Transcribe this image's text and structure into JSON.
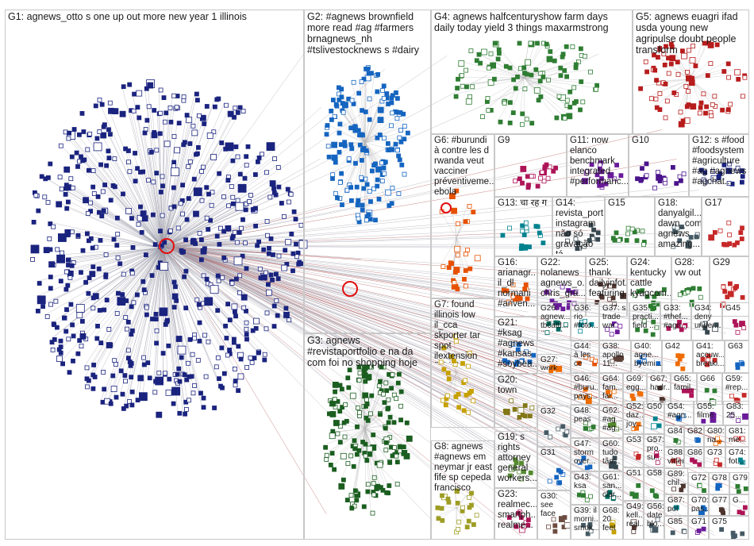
{
  "groups": [
    {
      "id": "G1",
      "label": "G1: agnews_otto s one up out more new year 1 illinois",
      "color": "#1a237e"
    },
    {
      "id": "G2",
      "label": "G2: #agnews brownfield more read #ag #farmers brnagnews_nh #tslivestocknews s #dairy",
      "color": "#1565c0"
    },
    {
      "id": "G3",
      "label": "G3: agnews #revistaportfolio e na da com foi no shopping hoje",
      "color": "#1b5e20"
    },
    {
      "id": "G4",
      "label": "G4: agnews halfcenturyshow farm days daily today yield 3 things maxarmstrong",
      "color": "#2e7d32"
    },
    {
      "id": "G5",
      "label": "G5: agnews euagri ifad usda young new agripulse doubt people transform",
      "color": "#b71c1c"
    },
    {
      "id": "G6",
      "label": "G6: #burundi à contre les d rwanda veut vacciner préventiveme... ebola",
      "color": "#e65100"
    },
    {
      "id": "G7",
      "label": "G7: found illinois low il_cca skporter tar spot ilextension field day",
      "color": "#c6a100"
    },
    {
      "id": "G8",
      "label": "G8: agnews #agnews em neymar jr east fife sp cepeda francisco",
      "color": "#9e9d24"
    },
    {
      "id": "G9",
      "label": "G9",
      "color": "#ad1457"
    },
    {
      "id": "G10",
      "label": "G10",
      "color": "#4a148c"
    },
    {
      "id": "G11",
      "label": "G11: now elanco benchmark integrated #performanc...",
      "color": "#6a1b9a"
    },
    {
      "id": "G12",
      "label": "G12: s #food #foodsystem #agriculture #ag #agnews #agchat...",
      "color": "#1a237e"
    },
    {
      "id": "G13",
      "label": "G13: चा रह ग",
      "color": "#00838f"
    },
    {
      "id": "G14",
      "label": "G14: revista_port... instagram não só gravação tá...",
      "color": "#37474f"
    },
    {
      "id": "G15",
      "label": "G15",
      "color": "#2e7d32"
    },
    {
      "id": "G16",
      "label": "G16: arianagr... il_dl normani #ariven...",
      "color": "#e65100"
    },
    {
      "id": "G17",
      "label": "G17",
      "color": "#c62828"
    },
    {
      "id": "G18",
      "label": "G18: danyalgil... dawn_com agnews amazing...",
      "color": "#455a64"
    },
    {
      "id": "G19",
      "label": "G19: s rights attorney general workers...",
      "color": "#558b2f"
    },
    {
      "id": "G20",
      "label": "G20: town",
      "color": "#827717"
    },
    {
      "id": "G21",
      "label": "G21: #ksag #agnews #kansas #soybea...",
      "color": "#1565c0"
    },
    {
      "id": "G22",
      "label": "G22: nolanews agnews_o... chris_gra...",
      "color": "#6a1b9a"
    },
    {
      "id": "G23",
      "label": "G23: realmec... smartph... realme...",
      "color": "#ad1457"
    },
    {
      "id": "G24",
      "label": "G24: kentucky cattle kyagcom...",
      "color": "#2e7d32"
    },
    {
      "id": "G25",
      "label": "G25: thank dailyinfot... featuring...",
      "color": "#4e342e"
    },
    {
      "id": "G26",
      "label": "G26: agnew... tbcattl... theted...",
      "color": "#00695c"
    },
    {
      "id": "G27",
      "label": "G27: work",
      "color": "#ef6c00"
    },
    {
      "id": "G28",
      "label": "G28: vw out",
      "color": "#2e7d32"
    },
    {
      "id": "G29",
      "label": "G29",
      "color": "#c62828"
    },
    {
      "id": "G30",
      "label": "G30: see face perso...",
      "color": "#6d4c41"
    },
    {
      "id": "G31",
      "label": "G31",
      "color": "#1565c0"
    },
    {
      "id": "G32",
      "label": "G32",
      "color": "#455a64"
    },
    {
      "id": "G33",
      "label": "G33: #thef... #agn...",
      "color": "#ad1457"
    },
    {
      "id": "G34",
      "label": "G34: deny under...",
      "color": "#37474f"
    },
    {
      "id": "G35",
      "label": "G35: practi... field ...",
      "color": "#2e7d32"
    },
    {
      "id": "G36",
      "label": "G36: rio #foto...",
      "color": "#00838f"
    },
    {
      "id": "G37",
      "label": "G37: s trade war u...",
      "color": "#6a1b9a"
    },
    {
      "id": "G38",
      "label": "G38: apollo 11...",
      "color": "#5d4037"
    },
    {
      "id": "G39",
      "label": "G39: il morni... smok...",
      "color": "#455a64"
    },
    {
      "id": "G40",
      "label": "G40: agne... byemi...",
      "color": "#1565c0"
    },
    {
      "id": "G41",
      "label": "G41: accuw... breaki...",
      "color": "#c62828"
    },
    {
      "id": "G42",
      "label": "G42",
      "color": "#ef6c00"
    },
    {
      "id": "G43",
      "label": "G43: ksa",
      "color": "#2e7d32"
    },
    {
      "id": "G44",
      "label": "G44: à les ce est...",
      "color": "#e65100"
    },
    {
      "id": "G45",
      "label": "G45",
      "color": "#ad1457"
    },
    {
      "id": "G46",
      "label": "G46: #buru... pays...",
      "color": "#ef6c00"
    },
    {
      "id": "G47",
      "label": "G47: storm over...",
      "color": "#1565c0"
    },
    {
      "id": "G48",
      "label": "G48: peas",
      "color": "#2e7d32"
    },
    {
      "id": "G49",
      "label": "G49: kell... real...",
      "color": "#4e342e"
    },
    {
      "id": "G50",
      "label": "G50",
      "color": "#00838f"
    },
    {
      "id": "G51",
      "label": "G51",
      "color": "#2e7d32"
    },
    {
      "id": "G52",
      "label": "G52: daz... joy...",
      "color": "#ef6c00"
    },
    {
      "id": "G53",
      "label": "G53",
      "color": "#c62828"
    },
    {
      "id": "G54",
      "label": "G54: #agn...",
      "color": "#1565c0"
    },
    {
      "id": "G55",
      "label": "G55: filme",
      "color": "#6a1b9a"
    },
    {
      "id": "G56",
      "label": "G56: date blo...",
      "color": "#455a64"
    },
    {
      "id": "G57",
      "label": "G57: pro... su...",
      "color": "#ad1457"
    },
    {
      "id": "G58",
      "label": "G58",
      "color": "#2e7d32"
    },
    {
      "id": "G59",
      "label": "G59: #rep...",
      "color": "#c62828"
    },
    {
      "id": "G60",
      "label": "G60: tudo tão...",
      "color": "#37474f"
    },
    {
      "id": "G61",
      "label": "G61: san... clar...",
      "color": "#00695c"
    },
    {
      "id": "G62",
      "label": "G62: #ag... #ag...",
      "color": "#558b2f"
    },
    {
      "id": "G63",
      "label": "G63",
      "color": "#1565c0"
    },
    {
      "id": "G64",
      "label": "G64: fam... far...",
      "color": "#ef6c00"
    },
    {
      "id": "G65",
      "label": "G65: famil...",
      "color": "#ad1457"
    },
    {
      "id": "G66",
      "label": "G66",
      "color": "#2e7d32"
    },
    {
      "id": "G67",
      "label": "G67: hadr...",
      "color": "#4e342e"
    },
    {
      "id": "G68",
      "label": "G68: 20 feet",
      "color": "#c6a100"
    },
    {
      "id": "G69",
      "label": "G69: egg...",
      "color": "#ef6c00"
    },
    {
      "id": "G70",
      "label": "G70: pas...",
      "color": "#1565c0"
    },
    {
      "id": "G71",
      "label": "G71",
      "color": "#6a1b9a"
    },
    {
      "id": "G72",
      "label": "G72",
      "color": "#2e7d32"
    },
    {
      "id": "G73",
      "label": "G73",
      "color": "#c62828"
    },
    {
      "id": "G74",
      "label": "G74: fot...",
      "color": "#00838f"
    },
    {
      "id": "G75",
      "label": "G75",
      "color": "#455a64"
    },
    {
      "id": "G76",
      "label": "G...",
      "color": "#ad1457"
    },
    {
      "id": "G77",
      "label": "G77",
      "color": "#4e342e"
    },
    {
      "id": "G78",
      "label": "G78",
      "color": "#1565c0"
    },
    {
      "id": "G79",
      "label": "G79",
      "color": "#2e7d32"
    },
    {
      "id": "G80",
      "label": "G80: na...",
      "color": "#ef6c00"
    },
    {
      "id": "G81",
      "label": "G81: me...",
      "color": "#c62828"
    },
    {
      "id": "G82",
      "label": "G82",
      "color": "#1565c0"
    },
    {
      "id": "G83",
      "label": "G83: 25...",
      "color": "#6a1b9a"
    },
    {
      "id": "G84",
      "label": "G84",
      "color": "#2e7d32"
    },
    {
      "id": "G85",
      "label": "G85",
      "color": "#455a64"
    },
    {
      "id": "G86",
      "label": "G86",
      "color": "#ad1457"
    },
    {
      "id": "G87",
      "label": "G87: pol",
      "color": "#00838f"
    },
    {
      "id": "G88",
      "label": "G88: vitter",
      "color": "#c62828"
    },
    {
      "id": "G89",
      "label": "G89: chil...",
      "color": "#4e342e"
    }
  ]
}
